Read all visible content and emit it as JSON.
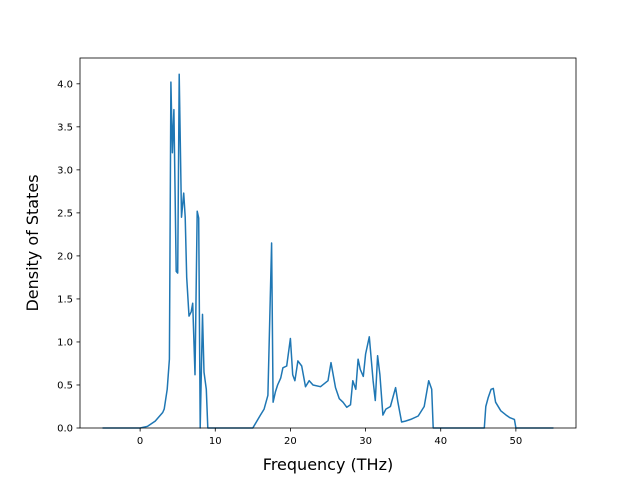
{
  "chart_data": {
    "type": "line",
    "title": "",
    "xlabel": "Frequency (THz)",
    "ylabel": "Density of States",
    "xlim": [
      -8.0,
      58.0
    ],
    "ylim": [
      0.0,
      4.3
    ],
    "xticks": [
      0,
      10,
      20,
      30,
      40,
      50
    ],
    "yticks": [
      0.0,
      0.5,
      1.0,
      1.5,
      2.0,
      2.5,
      3.0,
      3.5,
      4.0
    ],
    "xtick_labels": [
      "0",
      "10",
      "20",
      "30",
      "40",
      "50"
    ],
    "ytick_labels": [
      "0.0",
      "0.5",
      "1.0",
      "1.5",
      "2.0",
      "2.5",
      "3.0",
      "3.5",
      "4.0"
    ],
    "grid": false,
    "line_color": "#1f77b4",
    "series": [
      {
        "x": [
          -5.0,
          0.0,
          1.0,
          2.0,
          3.0,
          3.2,
          3.6,
          3.9,
          4.1,
          4.3,
          4.5,
          4.8,
          5.0,
          5.2,
          5.5,
          5.8,
          6.0,
          6.2,
          6.5,
          6.8,
          7.0,
          7.3,
          7.6,
          7.8,
          8.0,
          8.3,
          8.5,
          8.8,
          9.0,
          9.3,
          9.7,
          10.0,
          10.2,
          12.0,
          15.0,
          16.0,
          16.5,
          17.0,
          17.5,
          17.7,
          18.0,
          18.3,
          18.7,
          19.0,
          19.5,
          20.0,
          20.3,
          20.6,
          21.0,
          21.5,
          22.0,
          22.5,
          23.0,
          24.0,
          25.0,
          25.4,
          26.0,
          26.5,
          27.0,
          27.5,
          28.0,
          28.3,
          28.7,
          29.0,
          29.3,
          29.7,
          30.0,
          30.5,
          31.0,
          31.3,
          31.6,
          31.9,
          32.3,
          32.7,
          33.3,
          34.0,
          34.3,
          34.8,
          35.3,
          36.0,
          37.0,
          37.8,
          38.4,
          38.8,
          39.0,
          39.3,
          39.5,
          39.6,
          42.0,
          45.8,
          46.0,
          46.3,
          46.7,
          47.0,
          47.3,
          48.0,
          48.7,
          49.2,
          49.8,
          50.0,
          50.1,
          55.0
        ],
        "y": [
          0.0,
          0.0,
          0.02,
          0.08,
          0.18,
          0.22,
          0.45,
          0.8,
          4.02,
          3.2,
          3.7,
          1.82,
          1.8,
          4.11,
          2.45,
          2.73,
          2.45,
          1.75,
          1.3,
          1.35,
          1.45,
          0.62,
          2.52,
          2.44,
          0.0,
          1.32,
          0.65,
          0.45,
          0.0,
          0.0,
          0.0,
          0.0,
          0.0,
          0.0,
          0.0,
          0.15,
          0.22,
          0.38,
          2.15,
          0.3,
          0.42,
          0.5,
          0.58,
          0.7,
          0.72,
          1.04,
          0.62,
          0.55,
          0.78,
          0.72,
          0.48,
          0.55,
          0.5,
          0.48,
          0.55,
          0.76,
          0.47,
          0.34,
          0.3,
          0.24,
          0.27,
          0.55,
          0.45,
          0.8,
          0.68,
          0.6,
          0.86,
          1.06,
          0.55,
          0.32,
          0.84,
          0.62,
          0.15,
          0.22,
          0.25,
          0.47,
          0.3,
          0.07,
          0.08,
          0.1,
          0.14,
          0.25,
          0.55,
          0.45,
          0.0,
          0.0,
          0.0,
          0.0,
          0.0,
          0.0,
          0.25,
          0.35,
          0.45,
          0.46,
          0.3,
          0.2,
          0.15,
          0.12,
          0.1,
          0.0,
          0.0,
          0.0
        ]
      }
    ]
  }
}
